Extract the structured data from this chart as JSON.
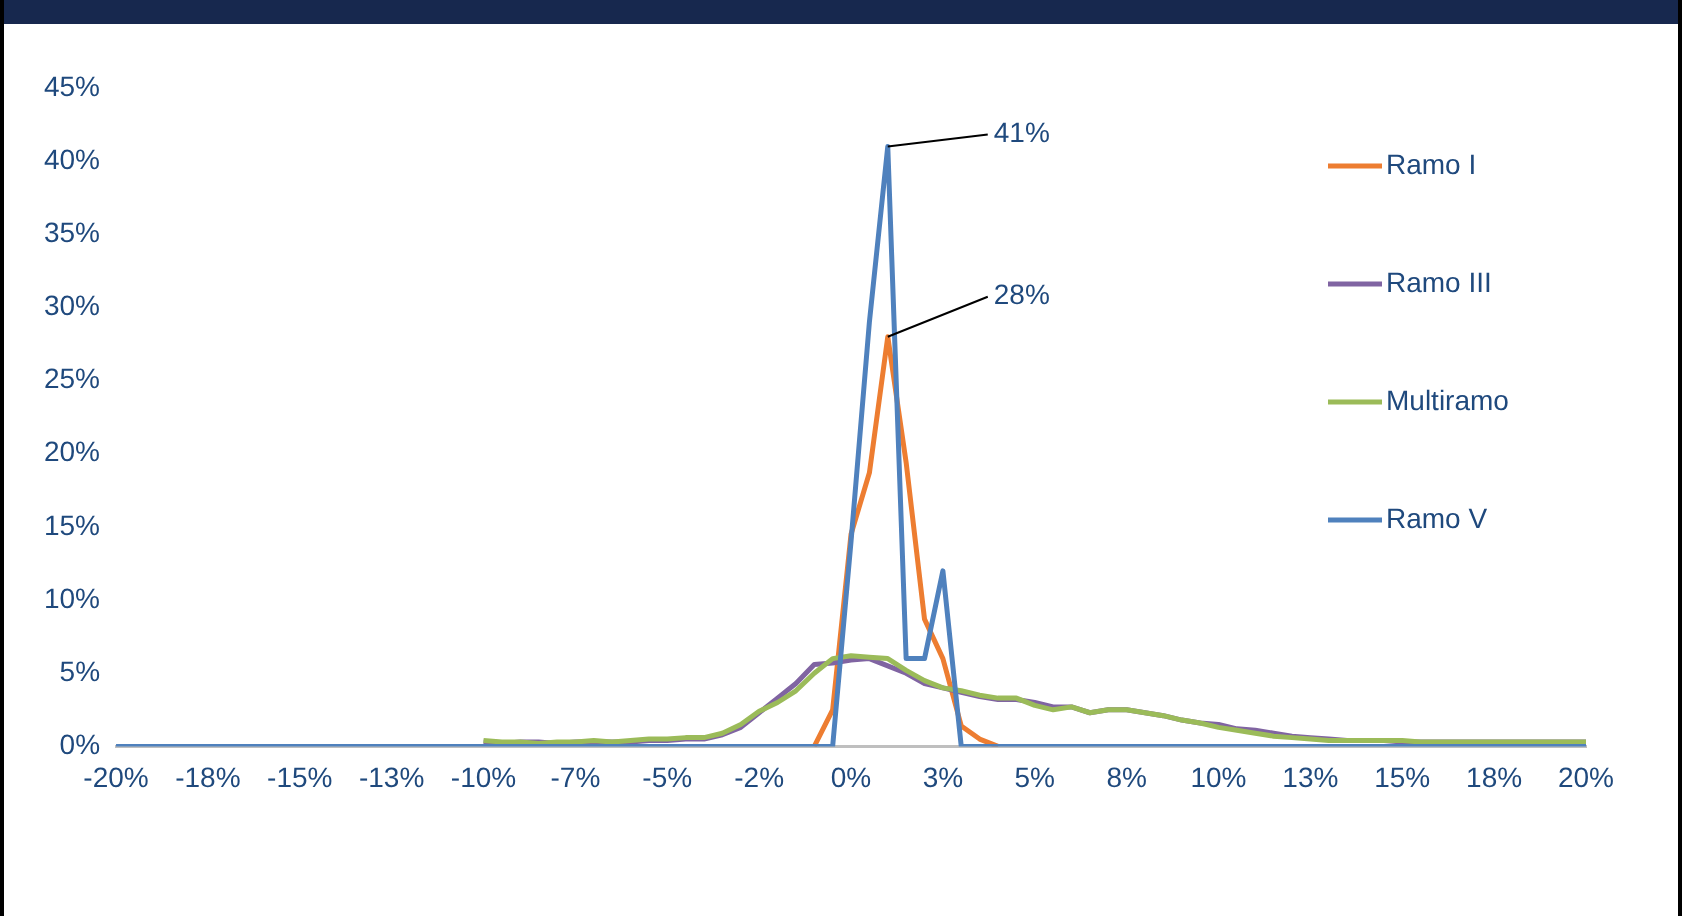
{
  "chart_data": {
    "type": "line",
    "categories": [
      "-20%",
      null,
      null,
      null,
      null,
      "-18%",
      null,
      null,
      null,
      null,
      "-15%",
      null,
      null,
      null,
      null,
      "-13%",
      null,
      null,
      null,
      null,
      "-10%",
      null,
      null,
      null,
      null,
      "-7%",
      null,
      null,
      null,
      null,
      "-5%",
      null,
      null,
      null,
      null,
      "-2%",
      null,
      null,
      null,
      null,
      "0%",
      null,
      null,
      null,
      null,
      "3%",
      null,
      null,
      null,
      null,
      "5%",
      null,
      null,
      null,
      null,
      "8%",
      null,
      null,
      null,
      null,
      "10%",
      null,
      null,
      null,
      null,
      "13%",
      null,
      null,
      null,
      null,
      "15%",
      null,
      null,
      null,
      null,
      "18%",
      null,
      null,
      null,
      null,
      "20%"
    ],
    "series": [
      {
        "name": "Ramo I",
        "color": "#ed7d31",
        "values": [
          null,
          null,
          null,
          null,
          null,
          null,
          null,
          null,
          null,
          null,
          null,
          null,
          null,
          null,
          null,
          null,
          null,
          null,
          null,
          null,
          null,
          null,
          null,
          null,
          null,
          null,
          null,
          null,
          null,
          null,
          null,
          null,
          null,
          null,
          null,
          null,
          null,
          null,
          0,
          2.5,
          14.5,
          18.7,
          28,
          19.4,
          8.7,
          6,
          1.4,
          0.5,
          0,
          null,
          null,
          null,
          null,
          null,
          null,
          null,
          null,
          null,
          null,
          null,
          null,
          null,
          null,
          null,
          null,
          null,
          null,
          null,
          null,
          null,
          null,
          null,
          null,
          null,
          null,
          null,
          null,
          null,
          null,
          null,
          null
        ],
        "value_labels": [
          null,
          null,
          null,
          null,
          null,
          null,
          null,
          null,
          null,
          null,
          null,
          null,
          null,
          null,
          null,
          null,
          null,
          null,
          null,
          null,
          null,
          null,
          null,
          null,
          null,
          null,
          null,
          null,
          null,
          null,
          null,
          null,
          null,
          null,
          null,
          null,
          null,
          null,
          null,
          null,
          null,
          null,
          "28%",
          null,
          null,
          null,
          null,
          null,
          null,
          null,
          null,
          null,
          null,
          null,
          null,
          null,
          null,
          null,
          null,
          null,
          null,
          null,
          null,
          null,
          null,
          null,
          null,
          null,
          null,
          null,
          null,
          null,
          null,
          null,
          null,
          null,
          null,
          null,
          null,
          null,
          null
        ]
      },
      {
        "name": "Ramo III",
        "color": "#8064a2",
        "values": [
          null,
          null,
          null,
          null,
          null,
          null,
          null,
          null,
          null,
          null,
          null,
          null,
          null,
          null,
          null,
          null,
          null,
          null,
          null,
          null,
          0.3,
          0.2,
          0.3,
          0.3,
          0.2,
          0.3,
          0.3,
          0.3,
          0.3,
          0.4,
          0.4,
          0.5,
          0.5,
          0.8,
          1.3,
          2.3,
          3.3,
          4.3,
          5.6,
          5.7,
          5.9,
          6,
          5.5,
          5,
          4.3,
          4,
          3.7,
          3.4,
          3.2,
          3.2,
          3,
          2.7,
          2.7,
          2.3,
          2.5,
          2.5,
          2.3,
          2.1,
          1.8,
          1.6,
          1.5,
          1.2,
          1.1,
          0.9,
          0.7,
          0.6,
          0.5,
          0.4,
          0.4,
          0.4,
          0.3,
          0.3,
          0.3,
          0.3,
          0.3,
          0.3,
          0.3,
          0.3,
          0.3,
          0.3,
          0.3
        ]
      },
      {
        "name": "Multiramo",
        "color": "#9bbb59",
        "values": [
          null,
          null,
          null,
          null,
          null,
          null,
          null,
          null,
          null,
          null,
          null,
          null,
          null,
          null,
          null,
          null,
          null,
          null,
          null,
          null,
          0.4,
          0.3,
          0.3,
          0.2,
          0.3,
          0.3,
          0.4,
          0.3,
          0.4,
          0.5,
          0.5,
          0.6,
          0.6,
          0.9,
          1.5,
          2.4,
          3,
          3.8,
          5,
          6,
          6.2,
          6.1,
          6,
          5.2,
          4.5,
          4,
          3.8,
          3.5,
          3.3,
          3.3,
          2.8,
          2.5,
          2.7,
          2.3,
          2.5,
          2.5,
          2.3,
          2.1,
          1.8,
          1.6,
          1.3,
          1.1,
          0.9,
          0.7,
          0.6,
          0.5,
          0.4,
          0.4,
          0.4,
          0.4,
          0.4,
          0.3,
          0.3,
          0.3,
          0.3,
          0.3,
          0.3,
          0.3,
          0.3,
          0.3,
          0.3
        ]
      },
      {
        "name": "Ramo V",
        "color": "#4f81bd",
        "values": [
          0,
          0,
          0,
          0,
          0,
          0,
          0,
          0,
          0,
          0,
          0,
          0,
          0,
          0,
          0,
          0,
          0,
          0,
          0,
          0,
          0,
          0,
          0,
          0,
          0,
          0,
          0,
          0,
          0,
          0,
          0,
          0,
          0,
          0,
          0,
          0,
          0,
          0,
          0,
          0,
          14,
          29,
          41,
          6,
          6,
          12,
          0,
          0,
          0,
          0,
          0,
          0,
          0,
          0,
          0,
          0,
          0,
          0,
          0,
          0,
          0,
          0,
          0,
          0,
          0,
          0,
          0,
          0,
          0,
          0,
          0,
          0,
          0,
          0,
          0,
          0,
          0,
          0,
          0,
          0,
          0
        ],
        "value_labels": [
          null,
          null,
          null,
          null,
          null,
          null,
          null,
          null,
          null,
          null,
          null,
          null,
          null,
          null,
          null,
          null,
          null,
          null,
          null,
          null,
          null,
          null,
          null,
          null,
          null,
          null,
          null,
          null,
          null,
          null,
          null,
          null,
          null,
          null,
          null,
          null,
          null,
          null,
          null,
          null,
          null,
          null,
          "41%",
          null,
          null,
          null,
          null,
          null,
          null,
          null,
          null,
          null,
          null,
          null,
          null,
          null,
          null,
          null,
          null,
          null,
          null,
          null,
          null,
          null,
          null,
          null,
          null,
          null,
          null,
          null,
          null,
          null,
          null,
          null,
          null,
          null,
          null,
          null,
          null,
          null,
          null
        ]
      }
    ],
    "ylim": [
      0,
      45
    ],
    "yticks": [
      {
        "value": 0,
        "label": "0%"
      },
      {
        "value": 5,
        "label": "5%"
      },
      {
        "value": 10,
        "label": "10%"
      },
      {
        "value": 15,
        "label": "15%"
      },
      {
        "value": 20,
        "label": "20%"
      },
      {
        "value": 25,
        "label": "25%"
      },
      {
        "value": 30,
        "label": "30%"
      },
      {
        "value": 35,
        "label": "35%"
      },
      {
        "value": 40,
        "label": "40%"
      },
      {
        "value": 45,
        "label": "45%"
      }
    ],
    "legend": "top right",
    "grid": false,
    "marker": "none",
    "line_style": "solid"
  }
}
